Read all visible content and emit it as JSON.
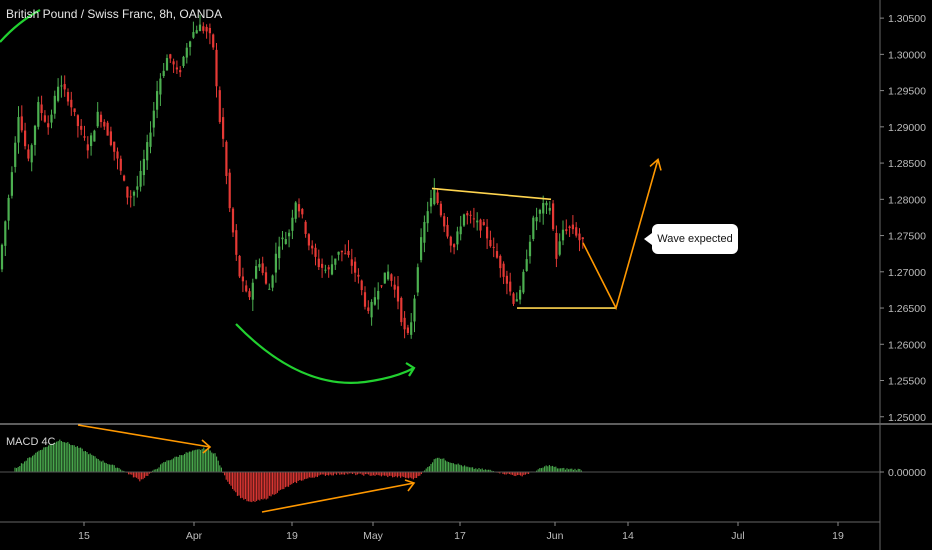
{
  "header": {
    "symbol_title": "British Pound / Swiss Franc, 8h, OANDA"
  },
  "indicator": {
    "label": "MACD 4C"
  },
  "annotation": {
    "callout_text": "Wave expected"
  },
  "colors": {
    "background": "#000000",
    "up": "#4caf50",
    "down": "#e53935",
    "annotation_orange": "#ff9800",
    "annotation_yellow": "#ffd54f",
    "annotation_green": "#22d130",
    "axis_text": "#bdbdbd"
  },
  "chart_data": {
    "type": "candlestick",
    "price_axis": {
      "ticks": [
        "1.30500",
        "1.30000",
        "1.29500",
        "1.29000",
        "1.28500",
        "1.28000",
        "1.27500",
        "1.27000",
        "1.26500",
        "1.26000",
        "1.25500",
        "1.25000"
      ],
      "range": [
        1.249,
        1.3075
      ]
    },
    "macd_axis": {
      "ticks": [
        "0.00000"
      ]
    },
    "time_axis": {
      "labels": [
        "15",
        "Apr",
        "19",
        "May",
        "17",
        "Jun",
        "14",
        "Jul",
        "19"
      ]
    },
    "price_path": [
      [
        0,
        1.27
      ],
      [
        10,
        1.28
      ],
      [
        20,
        1.292
      ],
      [
        30,
        1.285
      ],
      [
        40,
        1.293
      ],
      [
        50,
        1.29
      ],
      [
        60,
        1.296
      ],
      [
        70,
        1.294
      ],
      [
        80,
        1.29
      ],
      [
        90,
        1.287
      ],
      [
        100,
        1.292
      ],
      [
        110,
        1.289
      ],
      [
        120,
        1.285
      ],
      [
        130,
        1.28
      ],
      [
        140,
        1.282
      ],
      [
        150,
        1.288
      ],
      [
        160,
        1.296
      ],
      [
        170,
        1.3
      ],
      [
        180,
        1.297
      ],
      [
        190,
        1.302
      ],
      [
        200,
        1.304
      ],
      [
        210,
        1.303
      ],
      [
        215,
        1.301
      ],
      [
        220,
        1.292
      ],
      [
        225,
        1.288
      ],
      [
        230,
        1.28
      ],
      [
        235,
        1.275
      ],
      [
        240,
        1.27
      ],
      [
        250,
        1.266
      ],
      [
        260,
        1.272
      ],
      [
        270,
        1.267
      ],
      [
        280,
        1.274
      ],
      [
        290,
        1.275
      ],
      [
        297,
        1.28
      ],
      [
        305,
        1.277
      ],
      [
        310,
        1.274
      ],
      [
        320,
        1.271
      ],
      [
        330,
        1.27
      ],
      [
        340,
        1.273
      ],
      [
        350,
        1.272
      ],
      [
        360,
        1.269
      ],
      [
        370,
        1.264
      ],
      [
        380,
        1.268
      ],
      [
        390,
        1.27
      ],
      [
        400,
        1.266
      ],
      [
        405,
        1.262
      ],
      [
        410,
        1.261
      ],
      [
        415,
        1.265
      ],
      [
        420,
        1.272
      ],
      [
        425,
        1.276
      ],
      [
        430,
        1.279
      ],
      [
        436,
        1.281
      ],
      [
        445,
        1.277
      ],
      [
        455,
        1.273
      ],
      [
        465,
        1.278
      ],
      [
        475,
        1.277
      ],
      [
        485,
        1.276
      ],
      [
        495,
        1.273
      ],
      [
        505,
        1.27
      ],
      [
        515,
        1.266
      ],
      [
        522,
        1.267
      ],
      [
        528,
        1.272
      ],
      [
        535,
        1.277
      ],
      [
        545,
        1.279
      ],
      [
        552,
        1.279
      ],
      [
        558,
        1.272
      ],
      [
        565,
        1.276
      ],
      [
        575,
        1.276
      ],
      [
        583,
        1.274
      ]
    ],
    "macd_path": [
      [
        15,
        0.1
      ],
      [
        40,
        0.65
      ],
      [
        60,
        0.95
      ],
      [
        80,
        0.7
      ],
      [
        100,
        0.35
      ],
      [
        120,
        0.1
      ],
      [
        140,
        -0.25
      ],
      [
        150,
        -0.05
      ],
      [
        165,
        0.3
      ],
      [
        185,
        0.55
      ],
      [
        205,
        0.7
      ],
      [
        215,
        0.55
      ],
      [
        225,
        -0.15
      ],
      [
        238,
        -0.7
      ],
      [
        250,
        -0.9
      ],
      [
        265,
        -0.8
      ],
      [
        280,
        -0.55
      ],
      [
        300,
        -0.25
      ],
      [
        320,
        -0.1
      ],
      [
        345,
        -0.05
      ],
      [
        375,
        -0.1
      ],
      [
        400,
        -0.15
      ],
      [
        415,
        -0.2
      ],
      [
        425,
        0.05
      ],
      [
        437,
        0.45
      ],
      [
        450,
        0.3
      ],
      [
        470,
        0.12
      ],
      [
        490,
        0.05
      ],
      [
        505,
        -0.05
      ],
      [
        520,
        -0.12
      ],
      [
        535,
        0.02
      ],
      [
        548,
        0.2
      ],
      [
        560,
        0.1
      ],
      [
        583,
        0.07
      ]
    ],
    "drawings": [
      {
        "kind": "line",
        "color": "yellow",
        "points": [
          [
            1.2815,
            432
          ],
          [
            1.28,
            551
          ]
        ]
      },
      {
        "kind": "line",
        "color": "yellow",
        "points": [
          [
            1.265,
            517
          ],
          [
            1.265,
            616
          ]
        ]
      },
      {
        "kind": "arrow",
        "color": "orange",
        "points": [
          [
            1.274,
            583
          ],
          [
            1.265,
            616
          ],
          [
            1.2855,
            658
          ]
        ]
      },
      {
        "kind": "curve",
        "color": "green",
        "target": "price"
      },
      {
        "kind": "arrow",
        "color": "orange",
        "target": "macd"
      }
    ]
  }
}
